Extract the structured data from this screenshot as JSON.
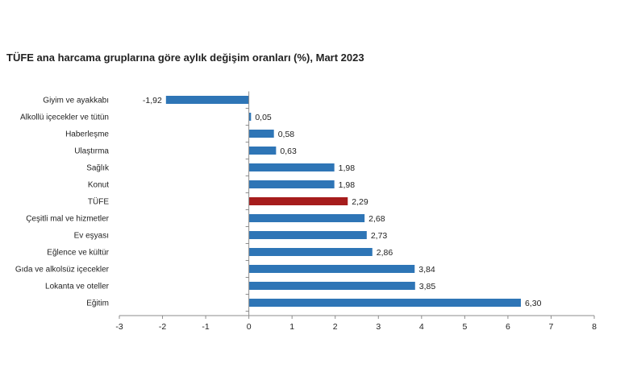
{
  "chart_data": {
    "type": "bar",
    "orientation": "horizontal",
    "title": "TÜFE ana harcama gruplarına göre aylık değişim oranları (%), Mart 2023",
    "categories": [
      "Giyim ve ayakkabı",
      "Alkollü içecekler ve tütün",
      "Haberleşme",
      "Ulaştırma",
      "Sağlık",
      "Konut",
      "TÜFE",
      "Çeşitli mal ve hizmetler",
      "Ev eşyası",
      "Eğlence ve kültür",
      "Gıda ve alkolsüz içecekler",
      "Lokanta ve oteller",
      "Eğitim"
    ],
    "values": [
      -1.92,
      0.05,
      0.58,
      0.63,
      1.98,
      1.98,
      2.29,
      2.68,
      2.73,
      2.86,
      3.84,
      3.85,
      6.3
    ],
    "value_labels": [
      "-1,92",
      "0,05",
      "0,58",
      "0,63",
      "1,98",
      "1,98",
      "2,29",
      "2,68",
      "2,73",
      "2,86",
      "3,84",
      "3,85",
      "6,30"
    ],
    "highlight_category": "TÜFE",
    "colors": {
      "default": "#2e75b6",
      "highlight": "#a61c1c",
      "axis": "#8c8c8c"
    },
    "xlim": [
      -3,
      8
    ],
    "xticks": [
      -3,
      -2,
      -1,
      0,
      1,
      2,
      3,
      4,
      5,
      6,
      7,
      8
    ],
    "grid": false,
    "legend": "none"
  }
}
